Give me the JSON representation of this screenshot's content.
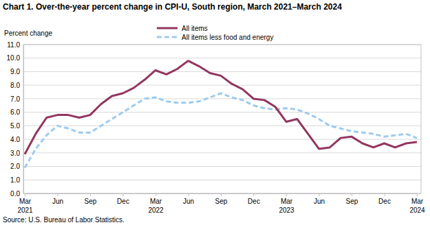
{
  "chart_data": {
    "type": "line",
    "title": "Chart 1. Over-the-year percent change in CPI-U, South region, March 2021–March 2024",
    "y_label": "Percent change",
    "source": "Source: U.S. Bureau of Labor Statistics.",
    "categories": [
      "Mar 2021",
      null,
      null,
      "Jun",
      null,
      null,
      "Sep",
      null,
      null,
      "Dec",
      null,
      null,
      "Mar 2022",
      null,
      null,
      "Jun",
      null,
      null,
      "Sep",
      null,
      null,
      "Dec",
      null,
      null,
      "Mar 2023",
      null,
      null,
      "Jun",
      null,
      null,
      "Sep",
      null,
      null,
      "Dec",
      null,
      null,
      "Mar 2024"
    ],
    "series": [
      {
        "name": "All items",
        "color": "#93365f",
        "line_style": "solid",
        "values": [
          2.9,
          4.4,
          5.6,
          5.8,
          5.8,
          5.6,
          5.8,
          6.6,
          7.2,
          7.4,
          7.8,
          8.4,
          9.1,
          8.8,
          9.2,
          9.8,
          9.4,
          8.9,
          8.7,
          8.1,
          7.7,
          7.0,
          6.9,
          6.4,
          5.3,
          5.5,
          4.4,
          3.3,
          3.4,
          4.1,
          4.2,
          3.7,
          3.4,
          3.7,
          3.4,
          3.7,
          3.8
        ]
      },
      {
        "name": "All items less food and energy",
        "color": "#9dcbef",
        "line_style": "dashed",
        "values": [
          1.9,
          3.3,
          4.3,
          5.0,
          4.8,
          4.5,
          4.5,
          5.0,
          5.5,
          6.0,
          6.5,
          7.0,
          7.1,
          6.8,
          6.7,
          6.7,
          6.8,
          7.1,
          7.4,
          7.1,
          6.9,
          6.5,
          6.3,
          6.2,
          6.3,
          6.2,
          5.9,
          5.5,
          5.0,
          4.8,
          4.6,
          4.5,
          4.4,
          4.2,
          4.3,
          4.4,
          4.1
        ]
      }
    ],
    "ylim": [
      0,
      11
    ],
    "yticks": [
      {
        "value": 0,
        "label": "0.0"
      },
      {
        "value": 1,
        "label": "1.0"
      },
      {
        "value": 2,
        "label": "2.0"
      },
      {
        "value": 3,
        "label": "3.0"
      },
      {
        "value": 4,
        "label": "4.0"
      },
      {
        "value": 5,
        "label": "5.0"
      },
      {
        "value": 6,
        "label": "6.0"
      },
      {
        "value": 7,
        "label": "7.0"
      },
      {
        "value": 8,
        "label": "8.0"
      },
      {
        "value": 9,
        "label": "9.0"
      },
      {
        "value": 10,
        "label": "10.0"
      },
      {
        "value": 11,
        "label": "11.0"
      }
    ],
    "grid": true,
    "legend": "top"
  }
}
